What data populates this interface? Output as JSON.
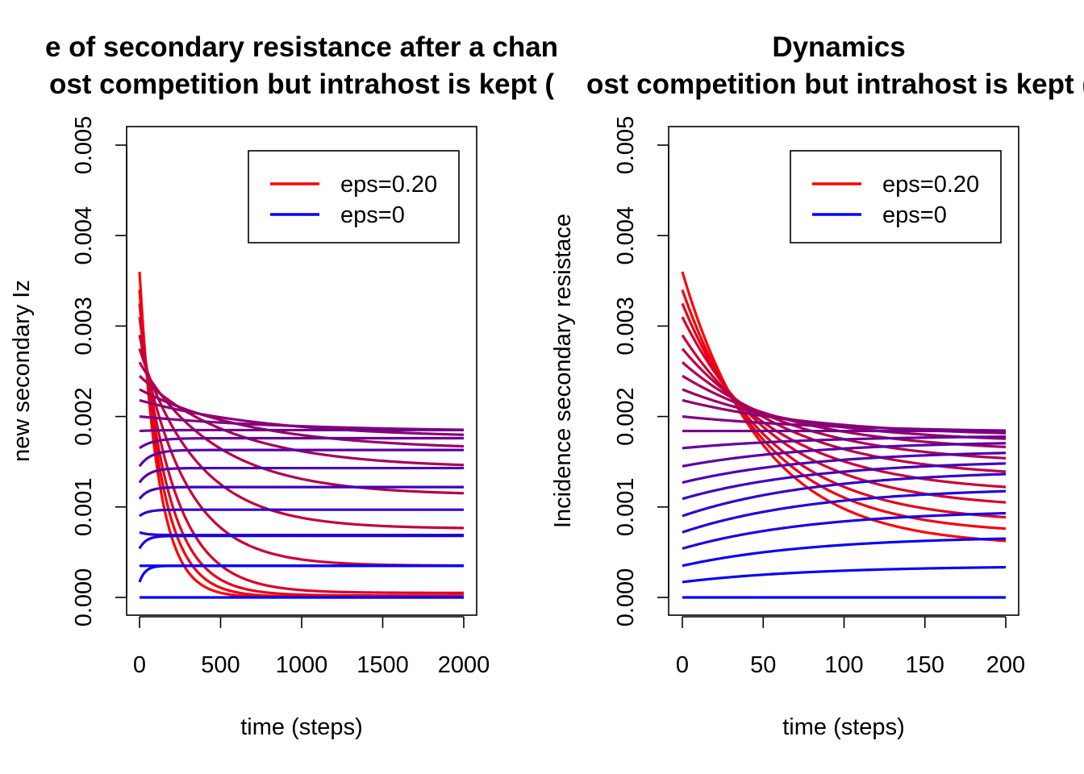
{
  "chart_data": [
    {
      "type": "line",
      "title": "e of secondary resistance after a chan",
      "subtitle": "ost competition but intrahost is kept (",
      "xlabel": "time (steps)",
      "ylabel": "new secondary Iz",
      "xlim": [
        0,
        2000
      ],
      "ylim": [
        0,
        0.005
      ],
      "xticks": [
        "0",
        "500",
        "1000",
        "1500",
        "2000"
      ],
      "yticks": [
        "0.000",
        "0.001",
        "0.002",
        "0.003",
        "0.004",
        "0.005"
      ],
      "legend": {
        "position": "top-right",
        "entries": [
          {
            "label": "eps=0.20",
            "color": "#ff0000"
          },
          {
            "label": "eps=0",
            "color": "#0000ff"
          }
        ]
      },
      "series": [
        {
          "start": 0.0036,
          "end": 0.0,
          "rate": 0.0085,
          "color": "#ff0000"
        },
        {
          "start": 0.0034,
          "end": 5e-06,
          "rate": 0.007,
          "color": "#f2000d"
        },
        {
          "start": 0.00325,
          "end": 2e-05,
          "rate": 0.0058,
          "color": "#e6001a"
        },
        {
          "start": 0.0031,
          "end": 5e-05,
          "rate": 0.0046,
          "color": "#d90026"
        },
        {
          "start": 0.0029,
          "end": 0.00035,
          "rate": 0.0036,
          "color": "#cc0033"
        },
        {
          "start": 0.00275,
          "end": 0.00076,
          "rate": 0.0028,
          "color": "#bf0040"
        },
        {
          "start": 0.0026,
          "end": 0.00113,
          "rate": 0.0021,
          "color": "#b3004d"
        },
        {
          "start": 0.00245,
          "end": 0.00143,
          "rate": 0.0017,
          "color": "#a60059"
        },
        {
          "start": 0.0023,
          "end": 0.00163,
          "rate": 0.0014,
          "color": "#990066"
        },
        {
          "start": 0.00218,
          "end": 0.00176,
          "rate": 0.0012,
          "color": "#8c0073"
        },
        {
          "start": 0.002,
          "end": 0.00183,
          "rate": 0.001,
          "color": "#800080"
        },
        {
          "start": 0.00184,
          "end": 0.00185,
          "rate": 0.01,
          "color": "#73008c"
        },
        {
          "start": 0.00165,
          "end": 0.00176,
          "rate": 0.012,
          "color": "#660099"
        },
        {
          "start": 0.00145,
          "end": 0.00163,
          "rate": 0.014,
          "color": "#5900a6"
        },
        {
          "start": 0.00127,
          "end": 0.00143,
          "rate": 0.016,
          "color": "#4d00b3"
        },
        {
          "start": 0.00109,
          "end": 0.00122,
          "rate": 0.018,
          "color": "#4000bf"
        },
        {
          "start": 0.0009,
          "end": 0.00097,
          "rate": 0.02,
          "color": "#3300cc"
        },
        {
          "start": 0.00072,
          "end": 0.00069,
          "rate": 0.022,
          "color": "#2600d9"
        },
        {
          "start": 0.00054,
          "end": 0.00068,
          "rate": 0.024,
          "color": "#1a00e6"
        },
        {
          "start": 0.00035,
          "end": 0.00035,
          "rate": 0.026,
          "color": "#0d00f2"
        },
        {
          "start": 0.00017,
          "end": 0.00035,
          "rate": 0.028,
          "color": "#0800f7"
        },
        {
          "start": 0.0,
          "end": 0.0,
          "rate": 0.03,
          "color": "#0000ff"
        }
      ]
    },
    {
      "type": "line",
      "title": "Dynamics",
      "subtitle": "ost competition but intrahost is kept (",
      "xlabel": "time (steps)",
      "ylabel": "Incidence secondary resistace",
      "xlim": [
        0,
        200
      ],
      "ylim": [
        0,
        0.005
      ],
      "xticks": [
        "0",
        "50",
        "100",
        "150",
        "200"
      ],
      "yticks": [
        "0.000",
        "0.001",
        "0.002",
        "0.003",
        "0.004",
        "0.005"
      ],
      "legend": {
        "position": "top-right",
        "entries": [
          {
            "label": "eps=0.20",
            "color": "#ff0000"
          },
          {
            "label": "eps=0",
            "color": "#0000ff"
          }
        ]
      },
      "series": [
        {
          "start": 0.0036,
          "end": 0.00057,
          "rate": 0.02,
          "color": "#ff0000"
        },
        {
          "start": 0.0034,
          "end": 0.0007,
          "rate": 0.019,
          "color": "#f2000d"
        },
        {
          "start": 0.00325,
          "end": 0.00082,
          "rate": 0.018,
          "color": "#e6001a"
        },
        {
          "start": 0.0031,
          "end": 0.00098,
          "rate": 0.017,
          "color": "#d90026"
        },
        {
          "start": 0.0029,
          "end": 0.00115,
          "rate": 0.016,
          "color": "#cc0033"
        },
        {
          "start": 0.00275,
          "end": 0.00132,
          "rate": 0.015,
          "color": "#bf0040"
        },
        {
          "start": 0.0026,
          "end": 0.00147,
          "rate": 0.014,
          "color": "#b3004d"
        },
        {
          "start": 0.00245,
          "end": 0.0016,
          "rate": 0.013,
          "color": "#a60059"
        },
        {
          "start": 0.0023,
          "end": 0.0017,
          "rate": 0.012,
          "color": "#990066"
        },
        {
          "start": 0.00218,
          "end": 0.00177,
          "rate": 0.011,
          "color": "#8c0073"
        },
        {
          "start": 0.002,
          "end": 0.00182,
          "rate": 0.01,
          "color": "#800080"
        },
        {
          "start": 0.00184,
          "end": 0.00184,
          "rate": 0.01,
          "color": "#73008c"
        },
        {
          "start": 0.00165,
          "end": 0.00179,
          "rate": 0.012,
          "color": "#660099"
        },
        {
          "start": 0.00145,
          "end": 0.00173,
          "rate": 0.012,
          "color": "#5900a6"
        },
        {
          "start": 0.00127,
          "end": 0.00163,
          "rate": 0.012,
          "color": "#4d00b3"
        },
        {
          "start": 0.00109,
          "end": 0.00152,
          "rate": 0.012,
          "color": "#4000bf"
        },
        {
          "start": 0.0009,
          "end": 0.00141,
          "rate": 0.012,
          "color": "#3300cc"
        },
        {
          "start": 0.00072,
          "end": 0.00122,
          "rate": 0.012,
          "color": "#2600d9"
        },
        {
          "start": 0.00054,
          "end": 0.00097,
          "rate": 0.012,
          "color": "#1a00e6"
        },
        {
          "start": 0.00035,
          "end": 0.00068,
          "rate": 0.012,
          "color": "#0d00f2"
        },
        {
          "start": 0.00017,
          "end": 0.00035,
          "rate": 0.012,
          "color": "#0800f7"
        },
        {
          "start": 0.0,
          "end": 0.0,
          "rate": 0.03,
          "color": "#0000ff"
        }
      ]
    }
  ]
}
